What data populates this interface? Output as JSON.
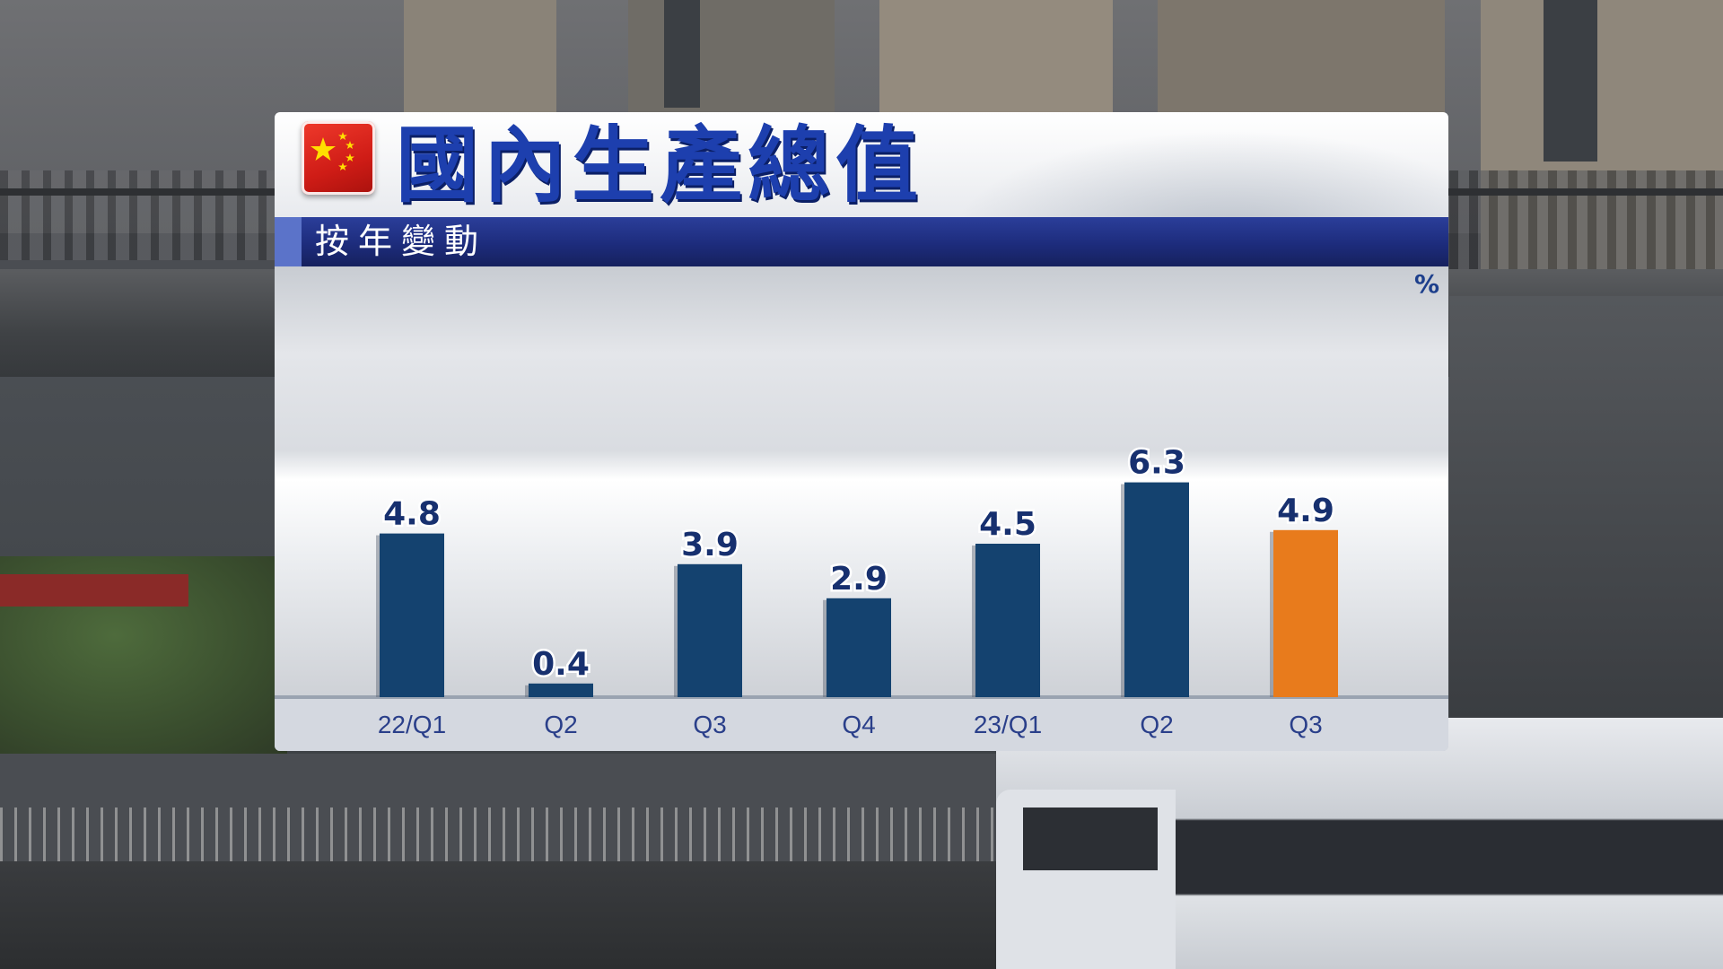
{
  "header": {
    "title": "國內生產總值",
    "subtitle": "按年變動",
    "flag_icon": "china-flag-icon"
  },
  "colors": {
    "title": "#1d3fae",
    "subtitle_band": "#1d2c7c",
    "bar_default": "#14426f",
    "bar_highlight": "#e87b1c"
  },
  "chart_data": {
    "type": "bar",
    "title": "國內生產總值",
    "subtitle": "按年變動",
    "unit": "%",
    "categories": [
      "22/Q1",
      "Q2",
      "Q3",
      "Q4",
      "23/Q1",
      "Q2",
      "Q3"
    ],
    "values": [
      4.8,
      0.4,
      3.9,
      2.9,
      4.5,
      6.3,
      4.9
    ],
    "highlight_index": 6,
    "ylim": [
      0,
      7
    ],
    "grid": false,
    "legend": "none"
  }
}
